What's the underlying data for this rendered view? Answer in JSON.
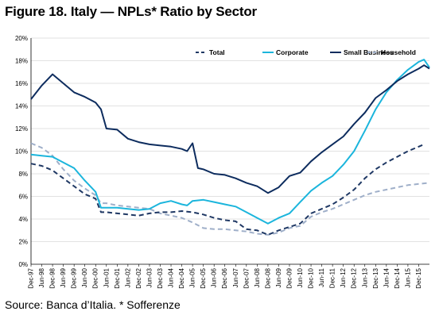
{
  "title": "Figure 18. Italy — NPLs* Ratio by Sector",
  "source": "Source: Banca d’Italia. * Sofferenze",
  "chart_data": {
    "type": "line",
    "title": "Figure 18. Italy — NPLs* Ratio by Sector",
    "xlabel": "",
    "ylabel": "",
    "ylim": [
      0,
      20
    ],
    "yticks": [
      "0%",
      "2%",
      "4%",
      "6%",
      "8%",
      "10%",
      "12%",
      "14%",
      "16%",
      "18%",
      "20%"
    ],
    "x_start": "Dec-97",
    "x_end": "Jun-16",
    "xticks": [
      "Dec-97",
      "Jun-98",
      "Dec-98",
      "Jun-99",
      "Dec-99",
      "Jun-00",
      "Dec-00",
      "Jun-01",
      "Dec-01",
      "Jun-02",
      "Dec-02",
      "Jun-03",
      "Dec-03",
      "Jun-04",
      "Dec-04",
      "Jun-05",
      "Dec-05",
      "Jun-06",
      "Dec-06",
      "Jun-07",
      "Dec-07",
      "Jun-08",
      "Dec-08",
      "Jun-09",
      "Dec-09",
      "Jun-10",
      "Dec-10",
      "Jun-11",
      "Dec-11",
      "Jun-12",
      "Dec-12",
      "Jun-13",
      "Dec-13",
      "Jun-14",
      "Dec-14",
      "Jun-15",
      "Dec-15"
    ],
    "grid": "horizontal",
    "legend_position": "top-right",
    "series": [
      {
        "name": "Total",
        "color": "#1f3864",
        "style": "dashed",
        "points": [
          [
            "Dec-97",
            8.9
          ],
          [
            "Jun-98",
            8.7
          ],
          [
            "Dec-98",
            8.3
          ],
          [
            "Jun-99",
            7.6
          ],
          [
            "Dec-99",
            6.9
          ],
          [
            "Jun-00",
            6.2
          ],
          [
            "Sep-00",
            6.0
          ],
          [
            "Dec-00",
            5.8
          ],
          [
            "Mar-01",
            4.6
          ],
          [
            "Jun-01",
            4.6
          ],
          [
            "Dec-01",
            4.5
          ],
          [
            "Jun-02",
            4.4
          ],
          [
            "Dec-02",
            4.3
          ],
          [
            "Jun-03",
            4.5
          ],
          [
            "Dec-03",
            4.6
          ],
          [
            "Jun-04",
            4.6
          ],
          [
            "Dec-04",
            4.7
          ],
          [
            "Jun-05",
            4.6
          ],
          [
            "Dec-05",
            4.4
          ],
          [
            "Jun-06",
            4.1
          ],
          [
            "Dec-06",
            3.9
          ],
          [
            "Jun-07",
            3.8
          ],
          [
            "Dec-07",
            3.1
          ],
          [
            "Jun-08",
            3.0
          ],
          [
            "Dec-08",
            2.6
          ],
          [
            "Jun-09",
            3.0
          ],
          [
            "Dec-09",
            3.3
          ],
          [
            "Jun-10",
            3.6
          ],
          [
            "Dec-10",
            4.5
          ],
          [
            "Jun-11",
            4.9
          ],
          [
            "Dec-11",
            5.3
          ],
          [
            "Jun-12",
            5.9
          ],
          [
            "Dec-12",
            6.6
          ],
          [
            "Jun-13",
            7.6
          ],
          [
            "Dec-13",
            8.4
          ],
          [
            "Jun-14",
            9.0
          ],
          [
            "Dec-14",
            9.5
          ],
          [
            "Jun-15",
            10.0
          ],
          [
            "Dec-15",
            10.4
          ],
          [
            "Mar-16",
            10.6
          ]
        ]
      },
      {
        "name": "Corporate",
        "color": "#1bb5dc",
        "style": "solid",
        "points": [
          [
            "Dec-97",
            9.7
          ],
          [
            "Jun-98",
            9.6
          ],
          [
            "Dec-98",
            9.5
          ],
          [
            "Jun-99",
            9.0
          ],
          [
            "Dec-99",
            8.5
          ],
          [
            "Jun-00",
            7.4
          ],
          [
            "Dec-00",
            6.4
          ],
          [
            "Mar-01",
            5.0
          ],
          [
            "Jun-01",
            5.0
          ],
          [
            "Dec-01",
            5.0
          ],
          [
            "Jun-02",
            4.9
          ],
          [
            "Dec-02",
            4.8
          ],
          [
            "Jun-03",
            4.9
          ],
          [
            "Dec-03",
            5.4
          ],
          [
            "Jun-04",
            5.6
          ],
          [
            "Dec-04",
            5.3
          ],
          [
            "Mar-05",
            5.2
          ],
          [
            "Jun-05",
            5.6
          ],
          [
            "Dec-05",
            5.7
          ],
          [
            "Jun-06",
            5.5
          ],
          [
            "Dec-06",
            5.3
          ],
          [
            "Jun-07",
            5.1
          ],
          [
            "Dec-07",
            4.6
          ],
          [
            "Jun-08",
            4.1
          ],
          [
            "Dec-08",
            3.6
          ],
          [
            "Jun-09",
            4.1
          ],
          [
            "Dec-09",
            4.5
          ],
          [
            "Jun-10",
            5.5
          ],
          [
            "Dec-10",
            6.5
          ],
          [
            "Jun-11",
            7.2
          ],
          [
            "Dec-11",
            7.8
          ],
          [
            "Jun-12",
            8.8
          ],
          [
            "Dec-12",
            10.0
          ],
          [
            "Jun-13",
            11.8
          ],
          [
            "Dec-13",
            13.7
          ],
          [
            "Jun-14",
            15.2
          ],
          [
            "Dec-14",
            16.3
          ],
          [
            "Jun-15",
            17.2
          ],
          [
            "Dec-15",
            17.9
          ],
          [
            "Mar-16",
            18.1
          ],
          [
            "Jun-16",
            17.4
          ]
        ]
      },
      {
        "name": "Small Business",
        "color": "#0d2c5e",
        "style": "solid",
        "points": [
          [
            "Dec-97",
            14.6
          ],
          [
            "Jun-98",
            15.8
          ],
          [
            "Dec-98",
            16.8
          ],
          [
            "Jun-99",
            16.0
          ],
          [
            "Dec-99",
            15.2
          ],
          [
            "Jun-00",
            14.8
          ],
          [
            "Dec-00",
            14.3
          ],
          [
            "Mar-01",
            13.7
          ],
          [
            "Jun-01",
            12.0
          ],
          [
            "Dec-01",
            11.9
          ],
          [
            "Jun-02",
            11.1
          ],
          [
            "Dec-02",
            10.8
          ],
          [
            "Jun-03",
            10.6
          ],
          [
            "Dec-03",
            10.5
          ],
          [
            "Jun-04",
            10.4
          ],
          [
            "Dec-04",
            10.2
          ],
          [
            "Mar-05",
            10.0
          ],
          [
            "Jun-05",
            10.7
          ],
          [
            "Sep-05",
            8.5
          ],
          [
            "Dec-05",
            8.4
          ],
          [
            "Jun-06",
            8.0
          ],
          [
            "Dec-06",
            7.9
          ],
          [
            "Jun-07",
            7.6
          ],
          [
            "Dec-07",
            7.2
          ],
          [
            "Jun-08",
            6.9
          ],
          [
            "Dec-08",
            6.3
          ],
          [
            "Jun-09",
            6.8
          ],
          [
            "Dec-09",
            7.8
          ],
          [
            "Jun-10",
            8.1
          ],
          [
            "Dec-10",
            9.1
          ],
          [
            "Jun-11",
            9.9
          ],
          [
            "Dec-11",
            10.6
          ],
          [
            "Jun-12",
            11.3
          ],
          [
            "Dec-12",
            12.4
          ],
          [
            "Jun-13",
            13.4
          ],
          [
            "Dec-13",
            14.7
          ],
          [
            "Jun-14",
            15.4
          ],
          [
            "Dec-14",
            16.2
          ],
          [
            "Jun-15",
            16.8
          ],
          [
            "Dec-15",
            17.3
          ],
          [
            "Mar-16",
            17.6
          ],
          [
            "Jun-16",
            17.3
          ]
        ]
      },
      {
        "name": "Household",
        "color": "#9fafc9",
        "style": "dashed",
        "points": [
          [
            "Dec-97",
            10.7
          ],
          [
            "Jun-98",
            10.3
          ],
          [
            "Dec-98",
            9.6
          ],
          [
            "Jun-99",
            8.4
          ],
          [
            "Dec-99",
            7.4
          ],
          [
            "Jun-00",
            6.7
          ],
          [
            "Dec-00",
            6.1
          ],
          [
            "Mar-01",
            5.4
          ],
          [
            "Jun-01",
            5.4
          ],
          [
            "Dec-01",
            5.2
          ],
          [
            "Jun-02",
            5.1
          ],
          [
            "Dec-02",
            5.0
          ],
          [
            "Jun-03",
            4.9
          ],
          [
            "Dec-03",
            4.5
          ],
          [
            "Jun-04",
            4.3
          ],
          [
            "Dec-04",
            4.1
          ],
          [
            "Jun-05",
            3.7
          ],
          [
            "Dec-05",
            3.2
          ],
          [
            "Jun-06",
            3.1
          ],
          [
            "Dec-06",
            3.1
          ],
          [
            "Jun-07",
            3.0
          ],
          [
            "Dec-07",
            2.9
          ],
          [
            "Jun-08",
            2.7
          ],
          [
            "Dec-08",
            2.6
          ],
          [
            "Jun-09",
            2.8
          ],
          [
            "Dec-09",
            3.2
          ],
          [
            "Jun-10",
            3.4
          ],
          [
            "Dec-10",
            4.2
          ],
          [
            "Jun-11",
            4.6
          ],
          [
            "Dec-11",
            4.9
          ],
          [
            "Jun-12",
            5.3
          ],
          [
            "Dec-12",
            5.7
          ],
          [
            "Jun-13",
            6.1
          ],
          [
            "Dec-13",
            6.4
          ],
          [
            "Jun-14",
            6.6
          ],
          [
            "Dec-14",
            6.8
          ],
          [
            "Jun-15",
            7.0
          ],
          [
            "Dec-15",
            7.1
          ],
          [
            "Jun-16",
            7.2
          ]
        ]
      }
    ]
  }
}
